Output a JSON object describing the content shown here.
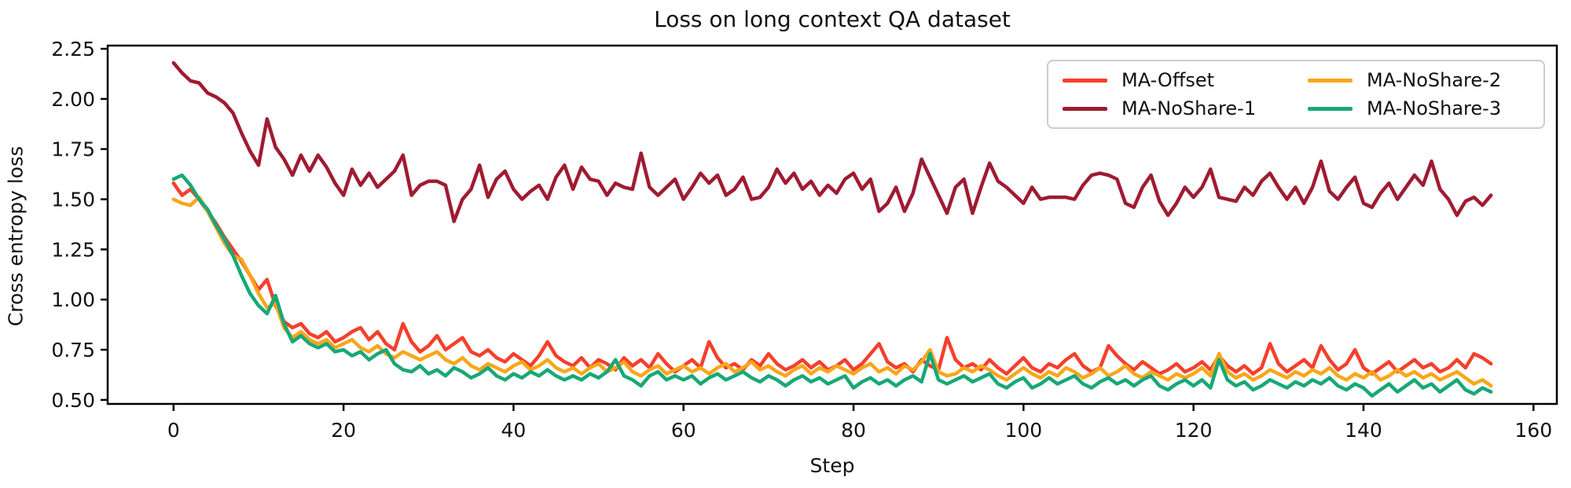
{
  "chart_data": {
    "type": "line",
    "title": "Loss on long context QA dataset",
    "xlabel": "Step",
    "ylabel": "Cross entropy loss",
    "grid": false,
    "legend_position": "upper right",
    "xlim": [
      -7.75,
      162.75
    ],
    "ylim": [
      0.48,
      2.266
    ],
    "x_ticks": {
      "values": [
        0,
        20,
        40,
        60,
        80,
        100,
        120,
        140,
        160
      ],
      "labels": [
        "0",
        "20",
        "40",
        "60",
        "80",
        "100",
        "120",
        "140",
        "160"
      ]
    },
    "y_ticks": {
      "values": [
        0.5,
        0.75,
        1.0,
        1.25,
        1.5,
        1.75,
        2.0,
        2.25
      ],
      "labels": [
        "0.50",
        "0.75",
        "1.00",
        "1.25",
        "1.50",
        "1.75",
        "2.00",
        "2.25"
      ]
    },
    "x_start": 0,
    "x_step": 1,
    "axis_color": "#000000",
    "series": [
      {
        "name": "MA-Offset",
        "color": "#F4402C",
        "values": [
          1.58,
          1.52,
          1.55,
          1.5,
          1.44,
          1.38,
          1.31,
          1.25,
          1.19,
          1.12,
          1.05,
          1.1,
          0.97,
          0.89,
          0.86,
          0.88,
          0.83,
          0.81,
          0.84,
          0.79,
          0.81,
          0.84,
          0.86,
          0.8,
          0.84,
          0.78,
          0.75,
          0.88,
          0.79,
          0.74,
          0.77,
          0.82,
          0.75,
          0.78,
          0.81,
          0.74,
          0.72,
          0.75,
          0.71,
          0.69,
          0.73,
          0.7,
          0.67,
          0.72,
          0.79,
          0.72,
          0.69,
          0.67,
          0.71,
          0.66,
          0.7,
          0.68,
          0.65,
          0.71,
          0.67,
          0.7,
          0.66,
          0.73,
          0.68,
          0.64,
          0.67,
          0.7,
          0.66,
          0.79,
          0.71,
          0.66,
          0.68,
          0.65,
          0.7,
          0.67,
          0.73,
          0.68,
          0.65,
          0.67,
          0.7,
          0.66,
          0.69,
          0.65,
          0.67,
          0.7,
          0.65,
          0.68,
          0.73,
          0.78,
          0.69,
          0.66,
          0.68,
          0.64,
          0.7,
          0.67,
          0.65,
          0.81,
          0.7,
          0.66,
          0.68,
          0.65,
          0.7,
          0.66,
          0.63,
          0.67,
          0.71,
          0.66,
          0.64,
          0.68,
          0.66,
          0.7,
          0.73,
          0.67,
          0.64,
          0.66,
          0.77,
          0.72,
          0.68,
          0.65,
          0.69,
          0.66,
          0.63,
          0.65,
          0.68,
          0.64,
          0.66,
          0.69,
          0.65,
          0.72,
          0.67,
          0.64,
          0.67,
          0.63,
          0.66,
          0.78,
          0.68,
          0.64,
          0.67,
          0.7,
          0.66,
          0.77,
          0.7,
          0.65,
          0.68,
          0.75,
          0.66,
          0.63,
          0.66,
          0.69,
          0.64,
          0.67,
          0.7,
          0.66,
          0.68,
          0.64,
          0.66,
          0.7,
          0.66,
          0.73,
          0.71,
          0.68
        ]
      },
      {
        "name": "MA-NoShare-1",
        "color": "#9F1B32",
        "values": [
          2.18,
          2.13,
          2.09,
          2.08,
          2.03,
          2.01,
          1.98,
          1.93,
          1.83,
          1.74,
          1.67,
          1.9,
          1.76,
          1.7,
          1.62,
          1.72,
          1.64,
          1.72,
          1.66,
          1.58,
          1.52,
          1.65,
          1.57,
          1.63,
          1.56,
          1.6,
          1.64,
          1.72,
          1.52,
          1.57,
          1.59,
          1.59,
          1.57,
          1.39,
          1.5,
          1.55,
          1.67,
          1.51,
          1.6,
          1.64,
          1.55,
          1.5,
          1.54,
          1.57,
          1.5,
          1.61,
          1.67,
          1.55,
          1.66,
          1.6,
          1.59,
          1.52,
          1.58,
          1.56,
          1.55,
          1.73,
          1.56,
          1.52,
          1.56,
          1.6,
          1.5,
          1.56,
          1.63,
          1.58,
          1.62,
          1.52,
          1.55,
          1.61,
          1.5,
          1.51,
          1.56,
          1.65,
          1.58,
          1.63,
          1.55,
          1.59,
          1.52,
          1.57,
          1.53,
          1.6,
          1.63,
          1.55,
          1.6,
          1.44,
          1.48,
          1.56,
          1.44,
          1.53,
          1.7,
          1.61,
          1.52,
          1.43,
          1.56,
          1.6,
          1.43,
          1.56,
          1.68,
          1.59,
          1.56,
          1.52,
          1.48,
          1.56,
          1.5,
          1.51,
          1.51,
          1.51,
          1.5,
          1.57,
          1.62,
          1.63,
          1.62,
          1.6,
          1.48,
          1.46,
          1.56,
          1.62,
          1.49,
          1.42,
          1.48,
          1.56,
          1.51,
          1.56,
          1.65,
          1.51,
          1.5,
          1.49,
          1.56,
          1.52,
          1.59,
          1.63,
          1.56,
          1.5,
          1.56,
          1.48,
          1.56,
          1.69,
          1.54,
          1.5,
          1.56,
          1.61,
          1.48,
          1.46,
          1.53,
          1.58,
          1.5,
          1.56,
          1.62,
          1.57,
          1.69,
          1.55,
          1.5,
          1.42,
          1.49,
          1.51,
          1.47,
          1.52
        ]
      },
      {
        "name": "MA-NoShare-2",
        "color": "#F9A61A",
        "values": [
          1.5,
          1.48,
          1.47,
          1.51,
          1.44,
          1.36,
          1.28,
          1.22,
          1.2,
          1.12,
          1.03,
          0.96,
          0.98,
          0.86,
          0.81,
          0.84,
          0.8,
          0.78,
          0.8,
          0.76,
          0.78,
          0.8,
          0.76,
          0.74,
          0.77,
          0.73,
          0.71,
          0.74,
          0.72,
          0.7,
          0.72,
          0.74,
          0.7,
          0.68,
          0.71,
          0.67,
          0.65,
          0.68,
          0.66,
          0.64,
          0.67,
          0.69,
          0.65,
          0.67,
          0.7,
          0.66,
          0.64,
          0.66,
          0.63,
          0.66,
          0.68,
          0.64,
          0.66,
          0.69,
          0.64,
          0.62,
          0.65,
          0.67,
          0.63,
          0.65,
          0.67,
          0.64,
          0.66,
          0.63,
          0.66,
          0.68,
          0.64,
          0.66,
          0.69,
          0.65,
          0.67,
          0.64,
          0.62,
          0.65,
          0.67,
          0.63,
          0.66,
          0.64,
          0.67,
          0.65,
          0.63,
          0.66,
          0.68,
          0.64,
          0.66,
          0.63,
          0.67,
          0.65,
          0.69,
          0.75,
          0.64,
          0.62,
          0.63,
          0.66,
          0.64,
          0.67,
          0.65,
          0.62,
          0.6,
          0.63,
          0.66,
          0.63,
          0.61,
          0.64,
          0.62,
          0.66,
          0.64,
          0.61,
          0.63,
          0.66,
          0.62,
          0.64,
          0.67,
          0.63,
          0.61,
          0.64,
          0.62,
          0.6,
          0.63,
          0.61,
          0.63,
          0.66,
          0.62,
          0.73,
          0.64,
          0.61,
          0.63,
          0.6,
          0.62,
          0.65,
          0.63,
          0.61,
          0.64,
          0.62,
          0.65,
          0.63,
          0.66,
          0.62,
          0.6,
          0.63,
          0.61,
          0.64,
          0.6,
          0.62,
          0.65,
          0.62,
          0.64,
          0.61,
          0.63,
          0.6,
          0.62,
          0.64,
          0.61,
          0.58,
          0.6,
          0.57
        ]
      },
      {
        "name": "MA-NoShare-3",
        "color": "#18A878",
        "values": [
          1.6,
          1.62,
          1.57,
          1.5,
          1.45,
          1.37,
          1.3,
          1.22,
          1.12,
          1.03,
          0.97,
          0.93,
          1.02,
          0.88,
          0.79,
          0.82,
          0.78,
          0.76,
          0.78,
          0.74,
          0.75,
          0.72,
          0.74,
          0.7,
          0.73,
          0.75,
          0.68,
          0.65,
          0.64,
          0.67,
          0.63,
          0.65,
          0.62,
          0.66,
          0.64,
          0.61,
          0.63,
          0.66,
          0.62,
          0.6,
          0.63,
          0.61,
          0.64,
          0.62,
          0.65,
          0.62,
          0.6,
          0.62,
          0.6,
          0.63,
          0.61,
          0.64,
          0.7,
          0.62,
          0.6,
          0.57,
          0.62,
          0.64,
          0.6,
          0.62,
          0.6,
          0.62,
          0.58,
          0.61,
          0.63,
          0.6,
          0.62,
          0.64,
          0.61,
          0.59,
          0.62,
          0.6,
          0.57,
          0.6,
          0.62,
          0.59,
          0.61,
          0.58,
          0.6,
          0.62,
          0.56,
          0.59,
          0.61,
          0.58,
          0.6,
          0.57,
          0.6,
          0.62,
          0.59,
          0.73,
          0.6,
          0.58,
          0.6,
          0.62,
          0.59,
          0.61,
          0.63,
          0.58,
          0.56,
          0.59,
          0.61,
          0.56,
          0.58,
          0.61,
          0.58,
          0.6,
          0.62,
          0.58,
          0.56,
          0.59,
          0.61,
          0.58,
          0.6,
          0.57,
          0.6,
          0.62,
          0.57,
          0.55,
          0.58,
          0.6,
          0.57,
          0.6,
          0.56,
          0.7,
          0.6,
          0.57,
          0.59,
          0.55,
          0.57,
          0.6,
          0.58,
          0.56,
          0.59,
          0.57,
          0.6,
          0.58,
          0.61,
          0.57,
          0.55,
          0.58,
          0.56,
          0.52,
          0.55,
          0.58,
          0.54,
          0.57,
          0.6,
          0.56,
          0.58,
          0.54,
          0.57,
          0.6,
          0.55,
          0.53,
          0.56,
          0.54
        ]
      }
    ]
  }
}
